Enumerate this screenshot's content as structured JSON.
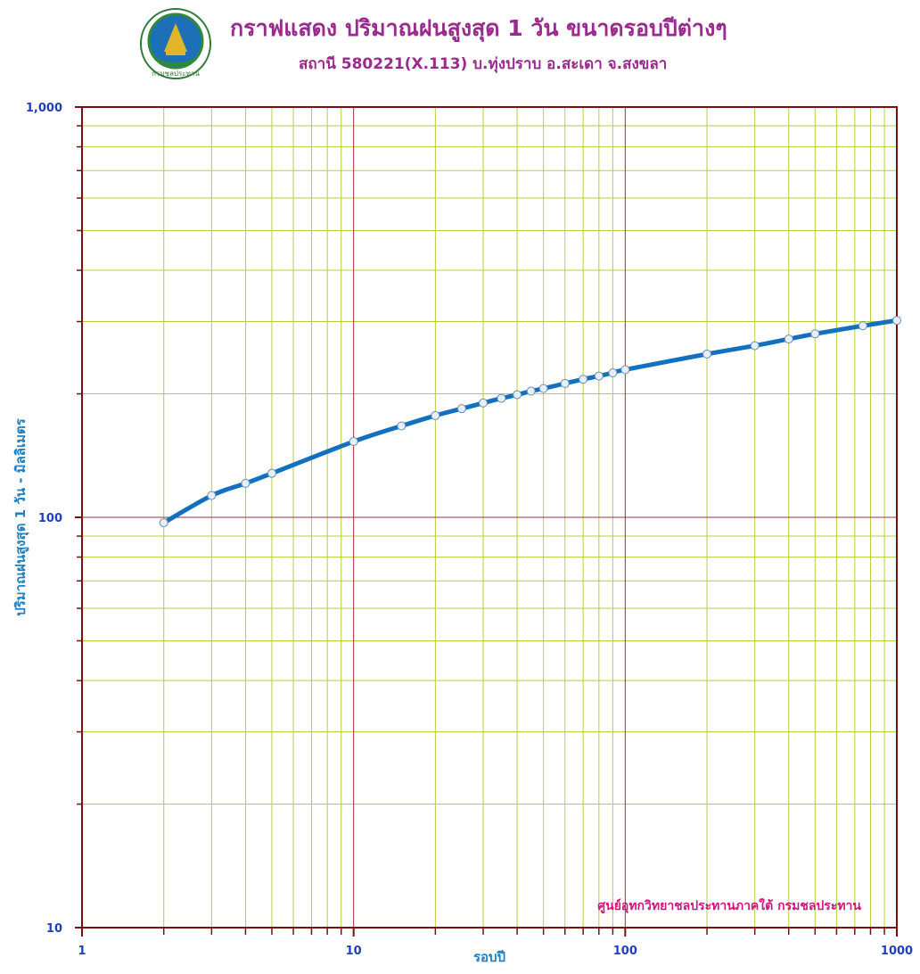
{
  "header": {
    "title": "กราฟแสดง ปริมาณฝนสูงสุด 1 วัน ขนาดรอบปีต่างๆ",
    "subtitle": "สถานี 580221(X.113) บ.ทุ่งปราบ อ.สะเดา จ.สงขลา",
    "logo_text": "กรมชลประทาน"
  },
  "credit": "ศูนย์อุทกวิทยาชลประทานภาคใต้ กรมชลประทาน",
  "colors": {
    "title": "#9b2a8e",
    "series": "#1270be",
    "frame": "#7a1010",
    "major_grid": "#a0303a",
    "minor_grid": "#b5cf3a",
    "tick_label": "#1f3fbf",
    "axis_label": "#1f7fbf",
    "credit": "#d0157f"
  },
  "chart_data": {
    "type": "line",
    "title": "กราฟแสดง ปริมาณฝนสูงสุด 1 วัน ขนาดรอบปีต่างๆ",
    "subtitle": "สถานี 580221(X.113) บ.ทุ่งปราบ อ.สะเดา จ.สงขลา",
    "xlabel": "รอบปี",
    "ylabel": "ปริมาณฝนสูงสุด 1 วัน - มิลลิเมตร",
    "x_scale": "log",
    "y_scale": "log",
    "xlim": [
      1,
      1000
    ],
    "ylim": [
      10,
      1000
    ],
    "x_ticks": [
      "1",
      "10",
      "100",
      "1000"
    ],
    "y_ticks": [
      "10",
      "100",
      "1,000"
    ],
    "grid": true,
    "series": [
      {
        "x": [
          2,
          3,
          4,
          5,
          10,
          15,
          20,
          25,
          30,
          35,
          40,
          45,
          50,
          60,
          70,
          80,
          90,
          100,
          200,
          300,
          400,
          500,
          750,
          1000
        ],
        "y": [
          97,
          113,
          121,
          128,
          153,
          167,
          177,
          184,
          190,
          195,
          199,
          203,
          206,
          212,
          217,
          221,
          225,
          229,
          250,
          262,
          272,
          280,
          293,
          302
        ]
      }
    ]
  }
}
